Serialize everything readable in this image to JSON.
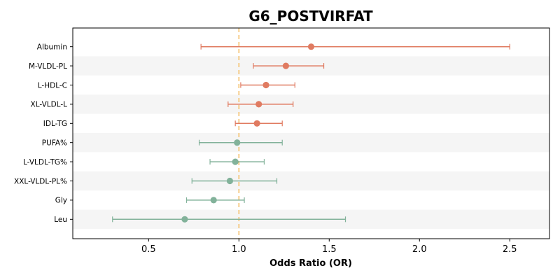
{
  "chart_data": {
    "type": "forest",
    "title": "G6_POSTVIRFAT",
    "xlabel": "Odds Ratio (OR)",
    "ylabel": "",
    "xlim": [
      0.08,
      2.72
    ],
    "xticks": [
      0.5,
      1.0,
      1.5,
      2.0,
      2.5
    ],
    "xtick_labels": [
      "0.5",
      "1.0",
      "1.5",
      "2.0",
      "2.5"
    ],
    "reference_line": 1.0,
    "grid": false,
    "colors": {
      "positive": "#e07b61",
      "negative": "#82b29a",
      "reference": "#f5c16c",
      "band": "#f5f5f5"
    },
    "rows": [
      {
        "label": "Albumin",
        "or": 1.4,
        "lo": 0.79,
        "hi": 2.5,
        "direction": "positive"
      },
      {
        "label": "M-VLDL-PL",
        "or": 1.26,
        "lo": 1.08,
        "hi": 1.47,
        "direction": "positive"
      },
      {
        "label": "L-HDL-C",
        "or": 1.15,
        "lo": 1.01,
        "hi": 1.31,
        "direction": "positive"
      },
      {
        "label": "XL-VLDL-L",
        "or": 1.11,
        "lo": 0.94,
        "hi": 1.3,
        "direction": "positive"
      },
      {
        "label": "IDL-TG",
        "or": 1.1,
        "lo": 0.98,
        "hi": 1.24,
        "direction": "positive"
      },
      {
        "label": "PUFA%",
        "or": 0.99,
        "lo": 0.78,
        "hi": 1.24,
        "direction": "negative"
      },
      {
        "label": "L-VLDL-TG%",
        "or": 0.98,
        "lo": 0.84,
        "hi": 1.14,
        "direction": "negative"
      },
      {
        "label": "XXL-VLDL-PL%",
        "or": 0.95,
        "lo": 0.74,
        "hi": 1.21,
        "direction": "negative"
      },
      {
        "label": "Gly",
        "or": 0.86,
        "lo": 0.71,
        "hi": 1.03,
        "direction": "negative"
      },
      {
        "label": "Leu",
        "or": 0.7,
        "lo": 0.3,
        "hi": 1.59,
        "direction": "negative"
      }
    ]
  }
}
